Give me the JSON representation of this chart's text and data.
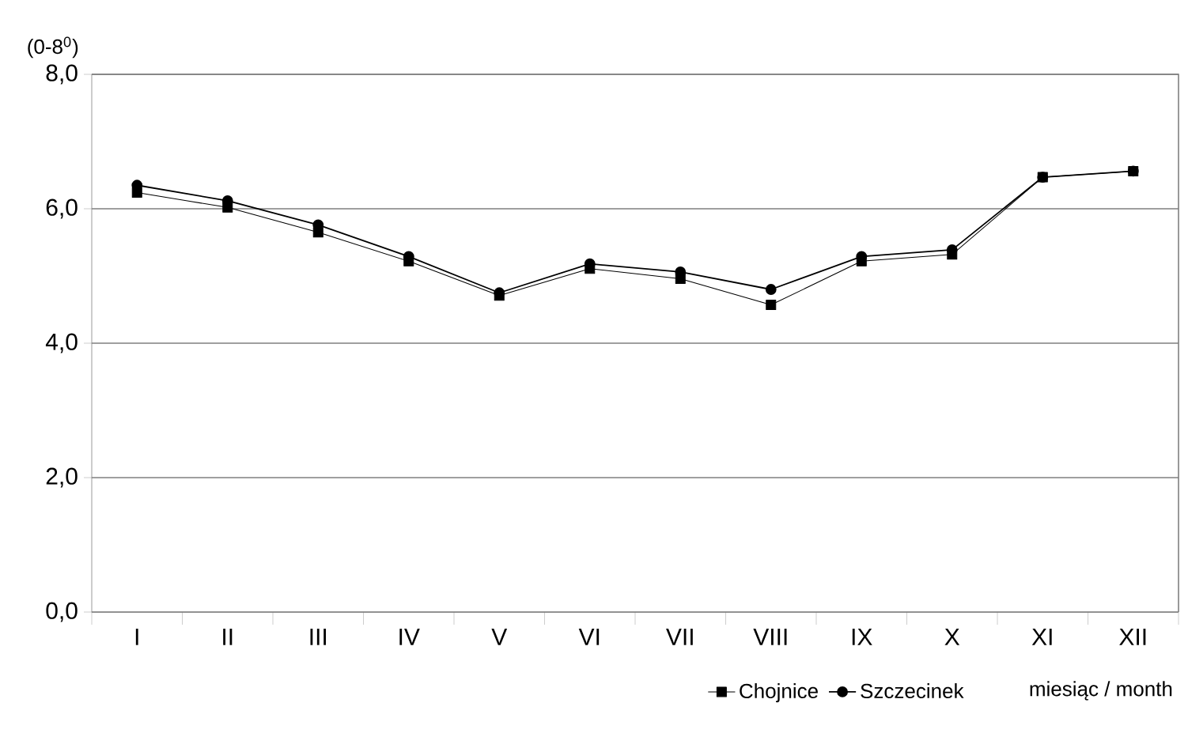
{
  "chart_data": {
    "type": "line",
    "ylabel": "(0-8$^{0}$)",
    "xlabel": "miesiąc / month",
    "categories": [
      "I",
      "II",
      "III",
      "IV",
      "V",
      "VI",
      "VII",
      "VIII",
      "IX",
      "X",
      "XI",
      "XII"
    ],
    "series": [
      {
        "name": "Chojnice",
        "color": "#000000",
        "marker": "square",
        "values": [
          6.24,
          6.02,
          5.65,
          5.22,
          4.71,
          5.11,
          4.96,
          4.57,
          5.22,
          5.32,
          6.47,
          6.56
        ]
      },
      {
        "name": "Szczecinek",
        "color": "#000000",
        "marker": "circle",
        "values": [
          6.35,
          6.12,
          5.76,
          5.29,
          4.75,
          5.18,
          5.06,
          4.8,
          5.29,
          5.39,
          6.47,
          6.56
        ]
      }
    ],
    "ylim": [
      0,
      8
    ],
    "yticks": [
      {
        "value": 0,
        "label": "0,0"
      },
      {
        "value": 2,
        "label": "2,0"
      },
      {
        "value": 4,
        "label": "4,0"
      },
      {
        "value": 6,
        "label": "6,0"
      },
      {
        "value": 8,
        "label": "8,0"
      }
    ],
    "grid": "y",
    "legend": "bottom"
  }
}
